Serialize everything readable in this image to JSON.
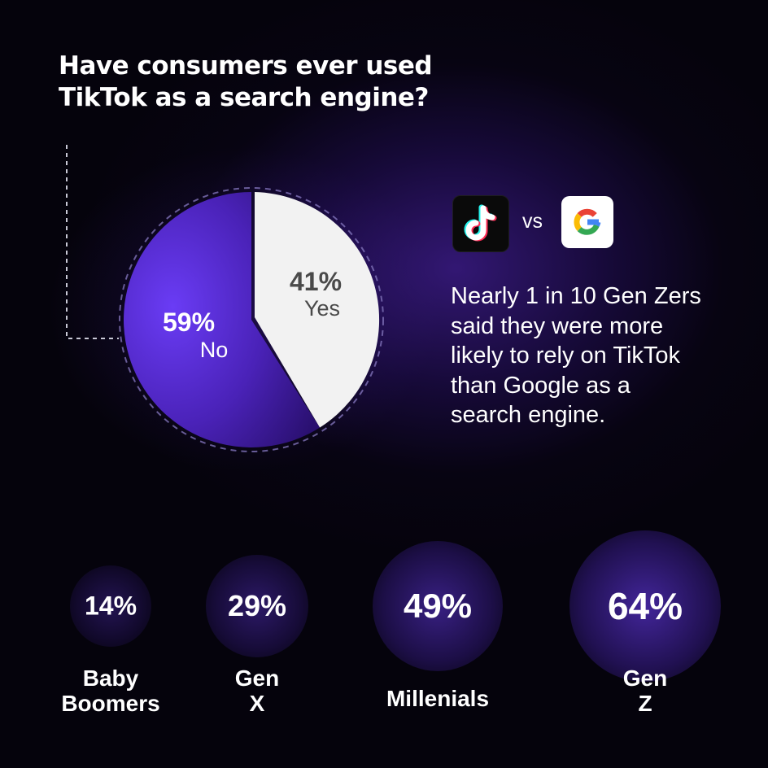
{
  "title_line1": "Have consumers ever used",
  "title_line2": "TikTok as a search engine?",
  "comparison": {
    "left_icon": "tiktok-logo-icon",
    "vs_label": "vs",
    "right_icon": "google-logo-icon"
  },
  "description": {
    "line1": "Nearly 1 in 10 Gen Zers",
    "line2": "said they were more",
    "line3": "likely to rely on TikTok",
    "line4": "than Google as a",
    "line5": "search engine."
  },
  "colors": {
    "no_slice": "#5b2ee0",
    "yes_slice": "#f2f2f2",
    "accent_purple": "#5a2fd6",
    "background": "#05030c"
  },
  "chart_data": [
    {
      "type": "pie",
      "title": "Have consumers ever used TikTok as a search engine?",
      "slices": [
        {
          "label": "Yes",
          "value": 41,
          "display": "41%"
        },
        {
          "label": "No",
          "value": 59,
          "display": "59%"
        }
      ]
    },
    {
      "type": "bubble",
      "categories": [
        "Baby Boomers",
        "Gen X",
        "Millenials",
        "Gen Z"
      ],
      "values": [
        14,
        29,
        49,
        64
      ],
      "displays": [
        "14%",
        "29%",
        "49%",
        "64%"
      ]
    }
  ]
}
